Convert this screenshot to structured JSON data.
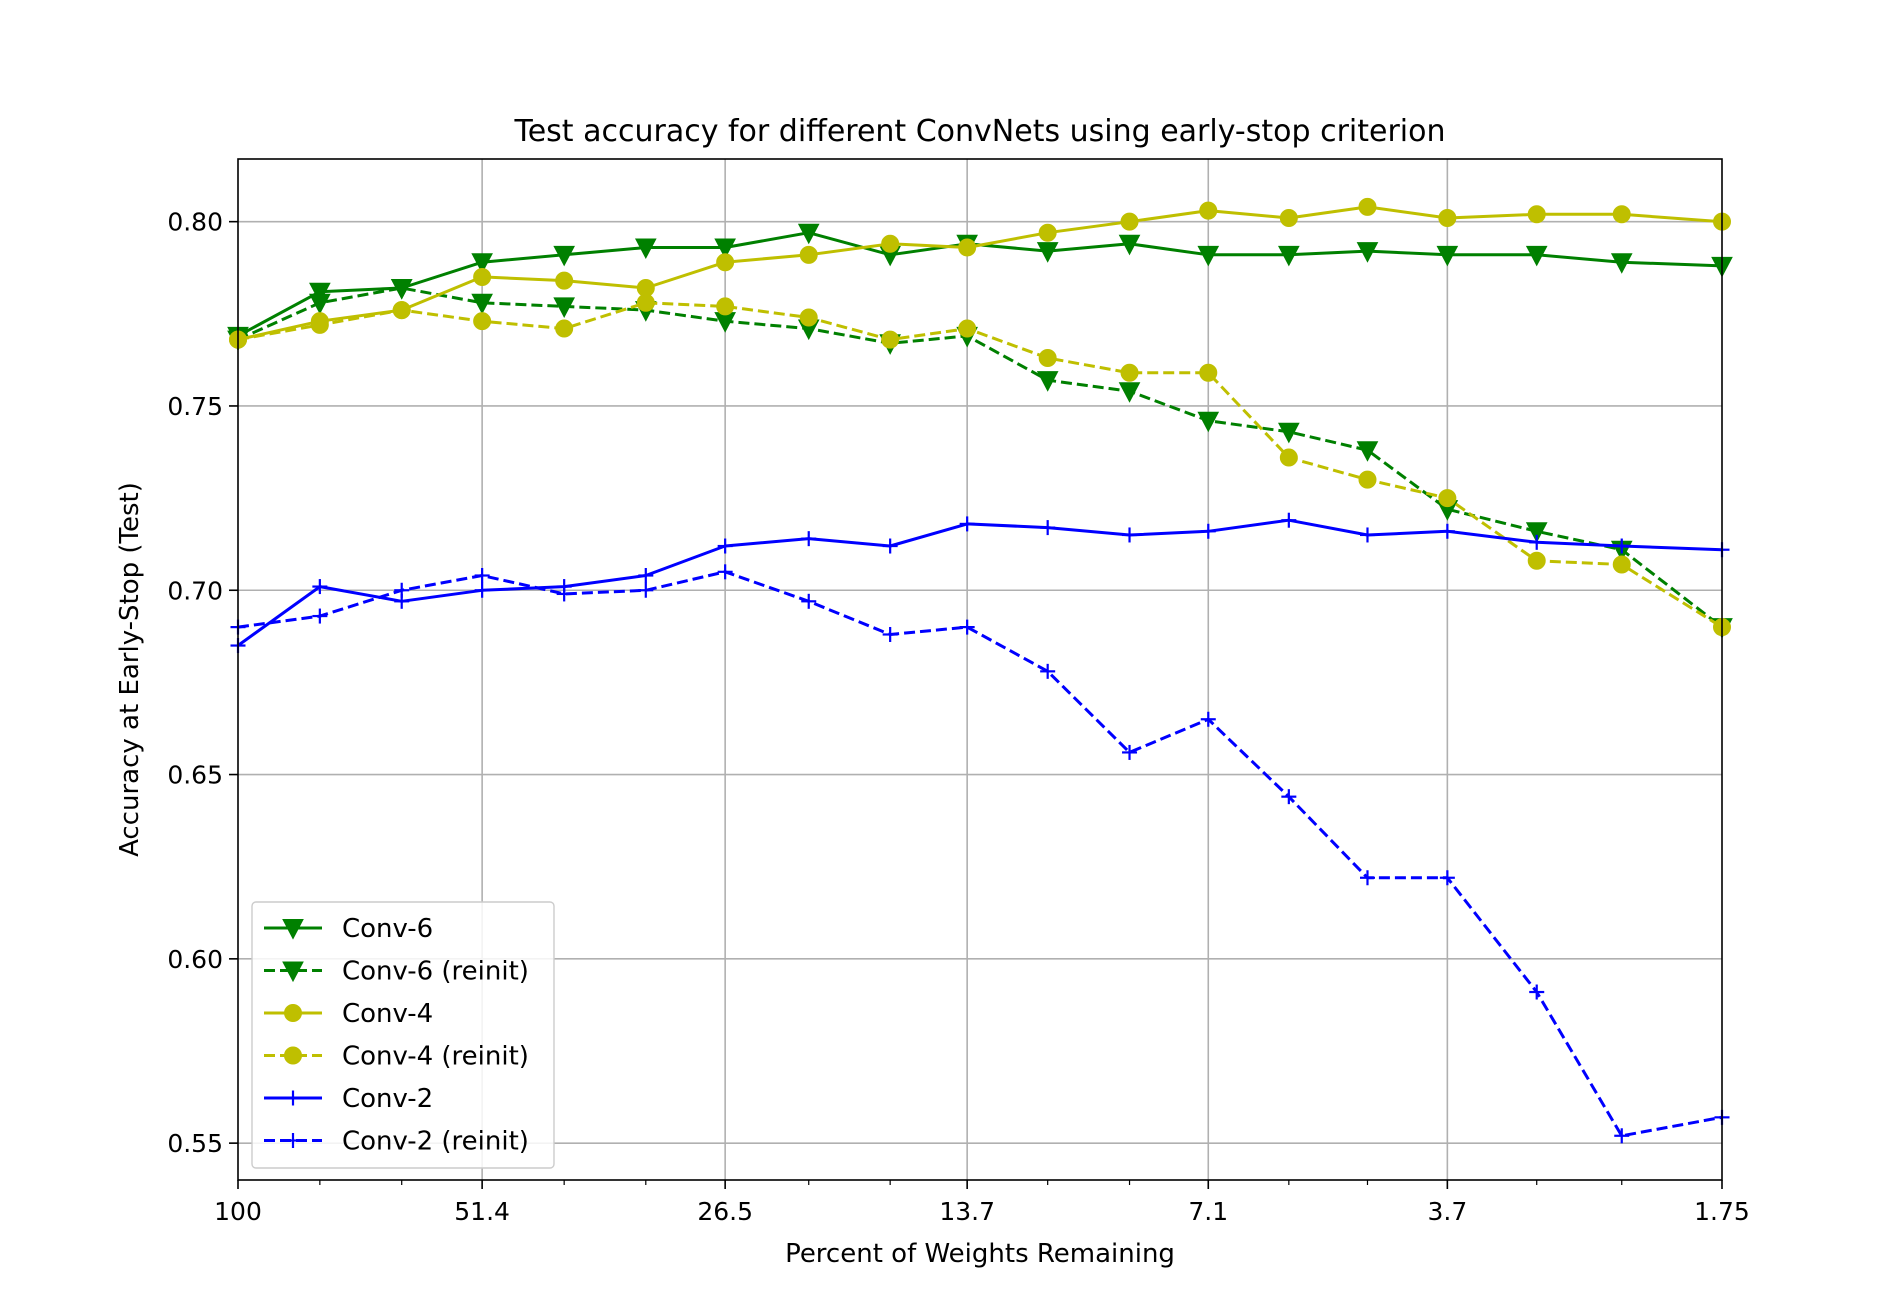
{
  "chart_data": {
    "type": "line",
    "title": "Test accuracy for different ConvNets using early-stop criterion",
    "xlabel": "Percent of Weights Remaining",
    "ylabel": "Accuracy at Early-Stop (Test)",
    "x_scale": "log-reversed",
    "x_major_ticks": [
      {
        "value": 100,
        "label": "100"
      },
      {
        "value": 51.4,
        "label": "51.4"
      },
      {
        "value": 26.5,
        "label": "26.5"
      },
      {
        "value": 13.7,
        "label": "13.7"
      },
      {
        "value": 7.1,
        "label": "7.1"
      },
      {
        "value": 3.7,
        "label": "3.7"
      },
      {
        "value": 1.75,
        "label": "1.75"
      }
    ],
    "x_minor_ticks": [
      80,
      64,
      41.1,
      32.9,
      21.1,
      16.9,
      11,
      8.8,
      5.7,
      4.6,
      2.9,
      2.3
    ],
    "xlim": [
      100,
      1.75
    ],
    "ylim": [
      0.54,
      0.817
    ],
    "y_ticks": [
      {
        "value": 0.55,
        "label": "0.55"
      },
      {
        "value": 0.6,
        "label": "0.60"
      },
      {
        "value": 0.65,
        "label": "0.65"
      },
      {
        "value": 0.7,
        "label": "0.70"
      },
      {
        "value": 0.75,
        "label": "0.75"
      },
      {
        "value": 0.8,
        "label": "0.80"
      }
    ],
    "grid": true,
    "legend_position": "lower-left",
    "x": [
      100,
      80,
      64,
      51.4,
      41.1,
      32.9,
      26.5,
      21.1,
      16.9,
      13.7,
      11,
      8.8,
      7.1,
      5.7,
      4.6,
      3.7,
      2.9,
      2.3,
      1.75
    ],
    "series": [
      {
        "name": "Conv-6",
        "color": "#008000",
        "dash": "solid",
        "marker": "triangle-down",
        "x": [
          100,
          80,
          64,
          51.4,
          41.1,
          32.9,
          26.5,
          21.1,
          16.9,
          13.7,
          11,
          8.8,
          7.1,
          5.7,
          4.6,
          3.7,
          2.9,
          2.3,
          1.75
        ],
        "values": [
          0.769,
          0.781,
          0.782,
          0.789,
          0.791,
          0.793,
          0.793,
          0.797,
          0.791,
          0.794,
          0.792,
          0.794,
          0.791,
          0.791,
          0.792,
          0.791,
          0.791,
          0.789,
          0.788
        ]
      },
      {
        "name": "Conv-6 (reinit)",
        "color": "#008000",
        "dash": "dashed",
        "marker": "triangle-down",
        "x": [
          100,
          80,
          64,
          51.4,
          41.1,
          32.9,
          26.5,
          21.1,
          16.9,
          13.7,
          11,
          8.8,
          7.1,
          5.7,
          4.6,
          3.7,
          2.9,
          2.3,
          1.75
        ],
        "values": [
          0.768,
          0.778,
          0.782,
          0.778,
          0.777,
          0.776,
          0.773,
          0.771,
          0.767,
          0.769,
          0.757,
          0.754,
          0.746,
          0.743,
          0.738,
          0.722,
          0.716,
          0.711,
          0.69
        ]
      },
      {
        "name": "Conv-4",
        "color": "#bfbf00",
        "dash": "solid",
        "marker": "circle",
        "x": [
          100,
          80,
          64,
          51.4,
          41.1,
          32.9,
          26.5,
          21.1,
          16.9,
          13.7,
          11,
          8.8,
          7.1,
          5.7,
          4.6,
          3.7,
          2.9,
          2.3,
          1.75
        ],
        "values": [
          0.768,
          0.773,
          0.776,
          0.785,
          0.784,
          0.782,
          0.789,
          0.791,
          0.794,
          0.793,
          0.797,
          0.8,
          0.803,
          0.801,
          0.804,
          0.801,
          0.802,
          0.802,
          0.8
        ]
      },
      {
        "name": "Conv-4 (reinit)",
        "color": "#bfbf00",
        "dash": "dashed",
        "marker": "circle",
        "x": [
          100,
          80,
          64,
          51.4,
          41.1,
          32.9,
          26.5,
          21.1,
          16.9,
          13.7,
          11,
          8.8,
          7.1,
          5.7,
          4.6,
          3.7,
          2.9,
          2.3,
          1.75
        ],
        "values": [
          0.768,
          0.772,
          0.776,
          0.773,
          0.771,
          0.778,
          0.777,
          0.774,
          0.768,
          0.771,
          0.763,
          0.759,
          0.759,
          0.736,
          0.73,
          0.725,
          0.708,
          0.707,
          0.69
        ]
      },
      {
        "name": "Conv-2",
        "color": "#0000ff",
        "dash": "solid",
        "marker": "plus",
        "x": [
          100,
          80,
          64,
          51.4,
          41.1,
          32.9,
          26.5,
          21.1,
          16.9,
          13.7,
          11,
          8.8,
          7.1,
          5.7,
          4.6,
          3.7,
          2.9,
          2.3,
          1.75
        ],
        "values": [
          0.685,
          0.701,
          0.697,
          0.7,
          0.701,
          0.704,
          0.712,
          0.714,
          0.712,
          0.718,
          0.717,
          0.715,
          0.716,
          0.719,
          0.715,
          0.716,
          0.713,
          0.712,
          0.711
        ]
      },
      {
        "name": "Conv-2 (reinit)",
        "color": "#0000ff",
        "dash": "dashed",
        "marker": "plus",
        "x": [
          100,
          80,
          64,
          51.4,
          41.1,
          32.9,
          26.5,
          21.1,
          16.9,
          13.7,
          11,
          8.8,
          7.1,
          5.7,
          4.6,
          3.7,
          2.9,
          2.3,
          1.75
        ],
        "values": [
          0.69,
          0.693,
          0.7,
          0.704,
          0.699,
          0.7,
          0.705,
          0.697,
          0.688,
          0.69,
          0.678,
          0.656,
          0.665,
          0.644,
          0.622,
          0.622,
          0.591,
          0.552,
          0.557
        ]
      }
    ]
  }
}
